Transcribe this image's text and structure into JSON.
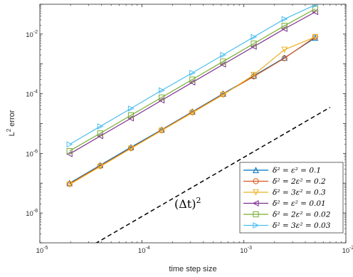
{
  "chart_data": {
    "type": "line",
    "xscale": "log",
    "yscale": "log",
    "xlim": [
      1e-05,
      0.01
    ],
    "ylim": [
      1e-09,
      0.1
    ],
    "xlabel": "time step size",
    "ylabel": "L",
    "ylabel_sup": "2",
    "ylabel_suffix": " error",
    "x_ticks": [
      {
        "value": 1e-05,
        "base": "10",
        "exp": "-5"
      },
      {
        "value": 0.0001,
        "base": "10",
        "exp": "-4"
      },
      {
        "value": 0.001,
        "base": "10",
        "exp": "-3"
      },
      {
        "value": 0.01,
        "base": "10",
        "exp": "-2"
      }
    ],
    "y_ticks": [
      {
        "value": 1e-08,
        "base": "10",
        "exp": "-8"
      },
      {
        "value": 1e-06,
        "base": "10",
        "exp": "-6"
      },
      {
        "value": 0.0001,
        "base": "10",
        "exp": "-4"
      },
      {
        "value": 0.01,
        "base": "10",
        "exp": "-2"
      }
    ],
    "x": [
      1.953e-05,
      3.906e-05,
      7.8125e-05,
      0.00015625,
      0.0003125,
      0.000625,
      0.00125,
      0.0025,
      0.005
    ],
    "series": [
      {
        "name": "δ² = ε² = 0.1",
        "color": "#0072BD",
        "marker": "triangle-up",
        "values": [
          1e-07,
          4e-07,
          1.6e-06,
          6.2e-06,
          2.5e-05,
          0.0001,
          0.0004,
          0.0016,
          0.0075
        ]
      },
      {
        "name": "δ² = 2ε² = 0.2",
        "color": "#D95319",
        "marker": "circle",
        "values": [
          9.5e-08,
          3.8e-07,
          1.5e-06,
          6e-06,
          2.4e-05,
          9.6e-05,
          0.00038,
          0.00155,
          0.008
        ]
      },
      {
        "name": "δ² = 3ε² = 0.3",
        "color": "#EDB120",
        "marker": "triangle-down",
        "values": [
          9e-08,
          3.6e-07,
          1.45e-06,
          5.8e-06,
          2.3e-05,
          9.2e-05,
          0.00043,
          0.003,
          0.008
        ]
      },
      {
        "name": "δ² = ε² = 0.01",
        "color": "#7E2F8E",
        "marker": "triangle-left",
        "values": [
          9.5e-07,
          3.8e-06,
          1.5e-05,
          6e-05,
          0.00024,
          0.00096,
          0.0038,
          0.015,
          0.055
        ]
      },
      {
        "name": "δ² = 2ε² = 0.02",
        "color": "#77AC30",
        "marker": "square",
        "values": [
          1.2e-06,
          4.7e-06,
          1.9e-05,
          7.5e-05,
          0.0003,
          0.0012,
          0.0048,
          0.019,
          0.07
        ]
      },
      {
        "name": "δ² = 3ε² = 0.03",
        "color": "#4DBEEE",
        "marker": "triangle-right",
        "values": [
          2e-06,
          8e-06,
          3.2e-05,
          0.00013,
          0.0005,
          0.002,
          0.008,
          0.032,
          0.095
        ]
      }
    ],
    "reference": {
      "label": "(Δt)",
      "label_sup": "2",
      "style": "dashed",
      "color": "#000000",
      "x": [
        3.5e-05,
        0.007
      ],
      "values": [
        9.5e-10,
        3.5e-05
      ]
    },
    "legend_position": "bottom-right",
    "grid": false
  }
}
